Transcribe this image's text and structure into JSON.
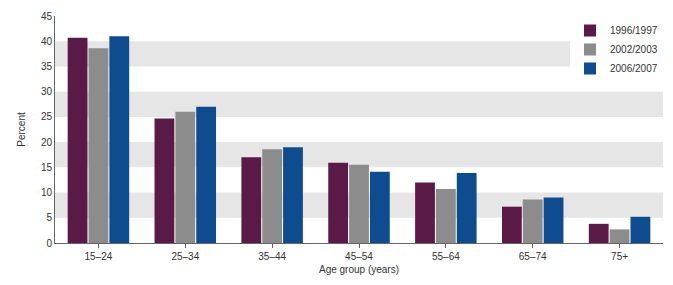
{
  "chart_data": {
    "type": "bar",
    "x_label": "Age group (years)",
    "y_label": "Percent",
    "categories": [
      "15–24",
      "25–34",
      "35–44",
      "45–54",
      "55–64",
      "65–74",
      "75+"
    ],
    "series": [
      {
        "name": "1996/1997",
        "color": "#5a1a48",
        "values": [
          40.7,
          24.7,
          17.0,
          15.9,
          12.0,
          7.2,
          3.8
        ]
      },
      {
        "name": "2002/2003",
        "color": "#8c8c8c",
        "values": [
          38.6,
          26.0,
          18.6,
          15.5,
          10.7,
          8.6,
          2.7
        ]
      },
      {
        "name": "2006/2007",
        "color": "#0f4c8f",
        "values": [
          41.0,
          27.0,
          19.0,
          14.1,
          13.9,
          9.0,
          5.2
        ]
      }
    ],
    "ylim": [
      0,
      45
    ],
    "yticks": [
      0,
      5,
      10,
      15,
      20,
      25,
      30,
      35,
      40,
      45
    ],
    "grid": true,
    "legend": "top-right"
  }
}
